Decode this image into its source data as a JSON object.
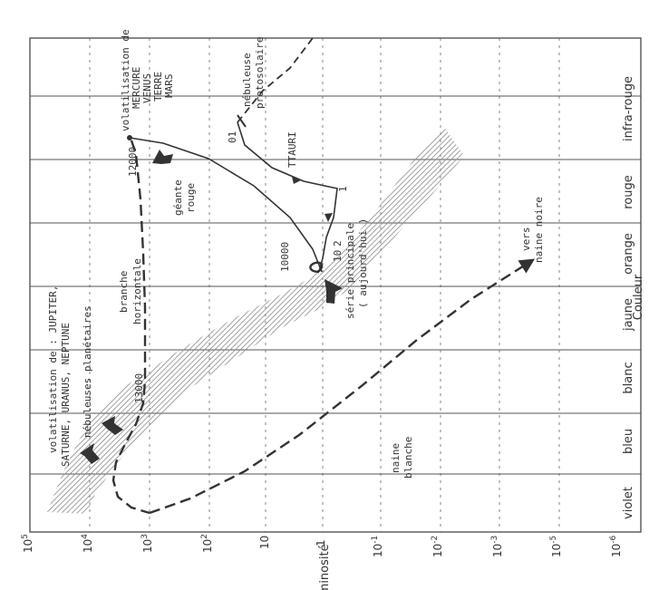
{
  "axes": {
    "y_label": "Luminosité",
    "x_label": "Couleur",
    "y_ticks": [
      {
        "base": "10",
        "exp": "5"
      },
      {
        "base": "10",
        "exp": "4"
      },
      {
        "base": "10",
        "exp": "3"
      },
      {
        "base": "10",
        "exp": "2"
      },
      {
        "base": "10",
        "exp": ""
      },
      {
        "base": "1",
        "exp": ""
      },
      {
        "base": "10",
        "exp": "-1"
      },
      {
        "base": "10",
        "exp": "-2"
      },
      {
        "base": "10",
        "exp": "-3"
      },
      {
        "base": "10",
        "exp": "-5"
      },
      {
        "base": "10",
        "exp": "-6"
      }
    ],
    "x_bands": [
      "violet",
      "bleu",
      "blanc",
      "jaune",
      "orange",
      "rouge",
      "infra-rouge"
    ]
  },
  "labels": {
    "volat_inner_1": "volatilisation de : JUPITER,",
    "volat_inner_2": "SATURNE, URANUS, NEPTUNE",
    "nebuleuses_planetaires": "nébuleuses planétaires",
    "t13000": "13000",
    "branche": "branche",
    "horizontale": "horizontale",
    "t12000": "12000",
    "volat_outer": "volatilisation de",
    "planets": [
      "MERCURE",
      "VENUS",
      "TERRE",
      "MARS"
    ],
    "geante": "géante",
    "rouge_lbl": "rouge",
    "t10000": "10000",
    "serie_principale": "série principale",
    "aujourdhui": "( aujourd'hui )",
    "naine": "naine",
    "blanche": "blanche",
    "vers": "vers",
    "naine_noire": "naine noire",
    "ttauri": "TTAURI",
    "n01": "01",
    "n1": "1",
    "n10": "10",
    "n2": "2",
    "nebuleuse": "nébuleuse",
    "protosolaire": "protosolaire"
  },
  "colors": {
    "ink": "#333333",
    "band": "#8a8a8a",
    "frame": "#555555"
  }
}
